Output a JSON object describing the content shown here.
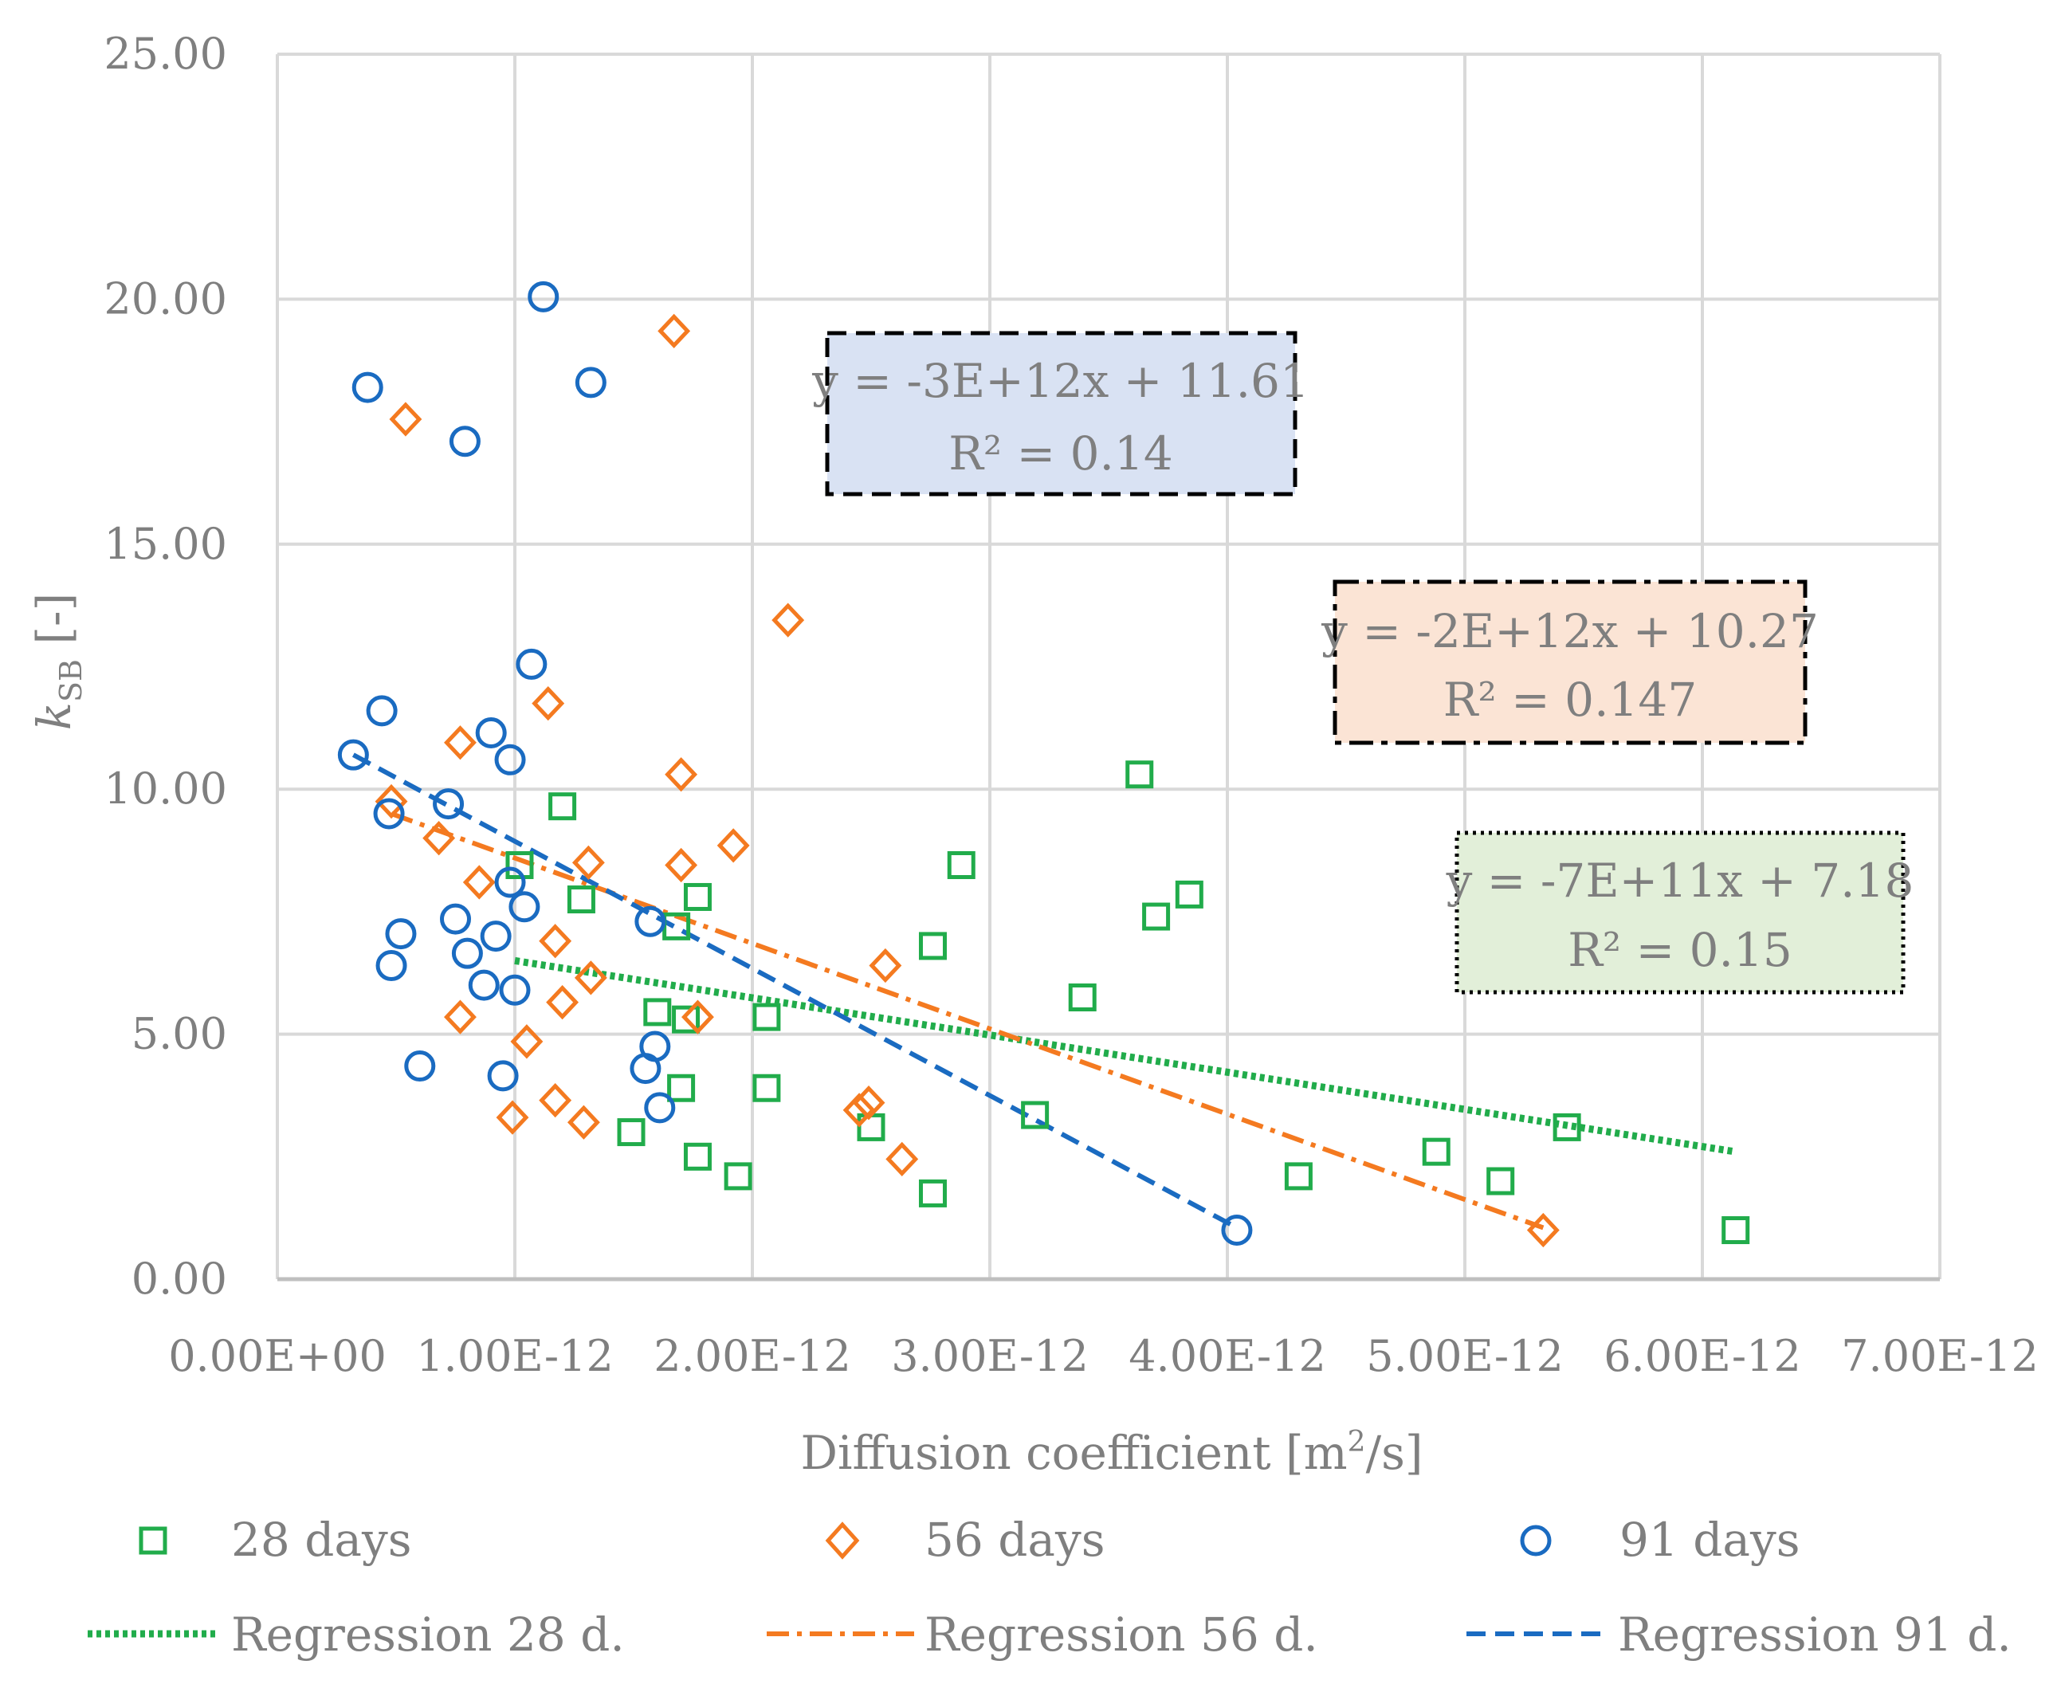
{
  "chart_data": {
    "type": "scatter",
    "title": "",
    "xlabel": "Diffusion coefficient [m²/s]",
    "xlabel_main": "Diffusion coefficient [m",
    "xlabel_sup": "2",
    "xlabel_end": "/s]",
    "ylabel": "kSB [-]",
    "ylabel_k": "k",
    "ylabel_sub": "SB",
    "ylabel_unit": "[-]",
    "xlim": [
      0,
      7e-12
    ],
    "ylim": [
      0,
      25
    ],
    "x_ticks": [
      0,
      1e-12,
      2e-12,
      3e-12,
      4e-12,
      5e-12,
      6e-12,
      7e-12
    ],
    "x_tick_labels": [
      "0.00E+00",
      "1.00E-12",
      "2.00E-12",
      "3.00E-12",
      "4.00E-12",
      "5.00E-12",
      "6.00E-12",
      "7.00E-12"
    ],
    "y_ticks": [
      0,
      5,
      10,
      15,
      20,
      25
    ],
    "y_tick_labels": [
      "0.00",
      "5.00",
      "10.00",
      "15.00",
      "20.00",
      "25.00"
    ],
    "grid": true,
    "legend_position": "bottom",
    "series": [
      {
        "name": "28 days",
        "marker": "square",
        "color": "#21ac4b",
        "points": [
          [
            1.02e-12,
            8.45
          ],
          [
            1.2e-12,
            9.65
          ],
          [
            1.28e-12,
            7.75
          ],
          [
            1.68e-12,
            7.2
          ],
          [
            1.77e-12,
            7.8
          ],
          [
            1.6e-12,
            5.45
          ],
          [
            1.72e-12,
            5.3
          ],
          [
            2.06e-12,
            5.35
          ],
          [
            2.06e-12,
            3.9
          ],
          [
            1.7e-12,
            3.9
          ],
          [
            1.49e-12,
            3.0
          ],
          [
            1.77e-12,
            2.5
          ],
          [
            1.94e-12,
            2.1
          ],
          [
            2.5e-12,
            3.1
          ],
          [
            2.76e-12,
            6.8
          ],
          [
            2.88e-12,
            8.45
          ],
          [
            2.76e-12,
            1.75
          ],
          [
            3.19e-12,
            3.35
          ],
          [
            3.39e-12,
            5.75
          ],
          [
            3.63e-12,
            10.3
          ],
          [
            3.7e-12,
            7.4
          ],
          [
            3.84e-12,
            7.85
          ],
          [
            4.3e-12,
            2.1
          ],
          [
            4.88e-12,
            2.6
          ],
          [
            5.15e-12,
            2.0
          ],
          [
            5.43e-12,
            3.1
          ],
          [
            6.14e-12,
            1.0
          ]
        ]
      },
      {
        "name": "56 days",
        "marker": "diamond",
        "color": "#f47a20",
        "points": [
          [
            5.4e-13,
            17.55
          ],
          [
            1.67e-12,
            19.35
          ],
          [
            2.15e-12,
            13.45
          ],
          [
            1.14e-12,
            11.75
          ],
          [
            7.7e-13,
            10.95
          ],
          [
            1.7e-12,
            10.3
          ],
          [
            4.8e-13,
            9.75
          ],
          [
            6.8e-13,
            9.0
          ],
          [
            8.5e-13,
            8.1
          ],
          [
            1.31e-12,
            8.5
          ],
          [
            1.7e-12,
            8.45
          ],
          [
            1.92e-12,
            8.85
          ],
          [
            1.17e-12,
            6.9
          ],
          [
            1.32e-12,
            6.15
          ],
          [
            1.2e-12,
            5.65
          ],
          [
            7.7e-13,
            5.35
          ],
          [
            1.77e-12,
            5.35
          ],
          [
            2.56e-12,
            6.4
          ],
          [
            1.05e-12,
            4.85
          ],
          [
            1.17e-12,
            3.65
          ],
          [
            9.9e-13,
            3.3
          ],
          [
            1.29e-12,
            3.2
          ],
          [
            2.45e-12,
            3.45
          ],
          [
            2.49e-12,
            3.6
          ],
          [
            2.63e-12,
            2.45
          ],
          [
            5.33e-12,
            1.0
          ]
        ]
      },
      {
        "name": "91 days",
        "marker": "circle",
        "color": "#1a6bc1",
        "points": [
          [
            3.8e-13,
            18.2
          ],
          [
            1.12e-12,
            20.05
          ],
          [
            7.9e-13,
            17.1
          ],
          [
            1.32e-12,
            18.3
          ],
          [
            1.07e-12,
            12.55
          ],
          [
            4.4e-13,
            11.6
          ],
          [
            9e-13,
            11.15
          ],
          [
            9.8e-13,
            10.6
          ],
          [
            3.2e-13,
            10.7
          ],
          [
            7.2e-13,
            9.7
          ],
          [
            4.7e-13,
            9.5
          ],
          [
            9.8e-13,
            8.1
          ],
          [
            1.04e-12,
            7.6
          ],
          [
            7.5e-13,
            7.35
          ],
          [
            5.2e-13,
            7.05
          ],
          [
            9.2e-13,
            7.0
          ],
          [
            8e-13,
            6.65
          ],
          [
            4.8e-13,
            6.4
          ],
          [
            8.7e-13,
            6.0
          ],
          [
            1e-12,
            5.9
          ],
          [
            1.57e-12,
            7.3
          ],
          [
            1.59e-12,
            4.75
          ],
          [
            1.55e-12,
            4.3
          ],
          [
            6e-13,
            4.35
          ],
          [
            9.5e-13,
            4.15
          ],
          [
            1.61e-12,
            3.5
          ],
          [
            4.04e-12,
            1.0
          ]
        ]
      }
    ],
    "regressions": [
      {
        "name": "Regression 28 d.",
        "color": "#21ac4b",
        "style": "dotted",
        "x_range": [
          1e-12,
          6.14e-12
        ],
        "line_y": [
          6.5,
          2.6
        ],
        "equation": "y = -7E+11x + 7.18",
        "r2": "R² = 0.15",
        "box_fill": "#e2efd9",
        "box_style": "dotted"
      },
      {
        "name": "Regression 56 d.",
        "color": "#f47a20",
        "style": "dash-dot",
        "x_range": [
          4.8e-13,
          5.33e-12
        ],
        "line_y": [
          9.5,
          1.05
        ],
        "equation": "y = -2E+12x + 10.27",
        "r2": "R² = 0.147",
        "box_fill": "#fbe4d5",
        "box_style": "dash-dot"
      },
      {
        "name": "Regression 91 d.",
        "color": "#1a6bc1",
        "style": "dashed",
        "x_range": [
          3.2e-13,
          4.04e-12
        ],
        "line_y": [
          10.7,
          1.05
        ],
        "equation": "y = -3E+12x + 11.61",
        "r2": "R² = 0.14",
        "box_fill": "#d9e2f3",
        "box_style": "dashed"
      }
    ]
  },
  "legend": {
    "marker_items": [
      {
        "label": "28 days",
        "marker": "square",
        "color": "#21ac4b"
      },
      {
        "label": "56 days",
        "marker": "diamond",
        "color": "#f47a20"
      },
      {
        "label": "91 days",
        "marker": "circle",
        "color": "#1a6bc1"
      }
    ],
    "line_items": [
      {
        "label": "Regression 28 d.",
        "style": "dotted",
        "color": "#21ac4b"
      },
      {
        "label": "Regression 56 d.",
        "style": "dash-dot",
        "color": "#f47a20"
      },
      {
        "label": "Regression 91 d.",
        "style": "dashed",
        "color": "#1a6bc1"
      }
    ]
  },
  "colors": {
    "grid": "#d9d9d9",
    "axis_text": "#7f7f7f"
  }
}
